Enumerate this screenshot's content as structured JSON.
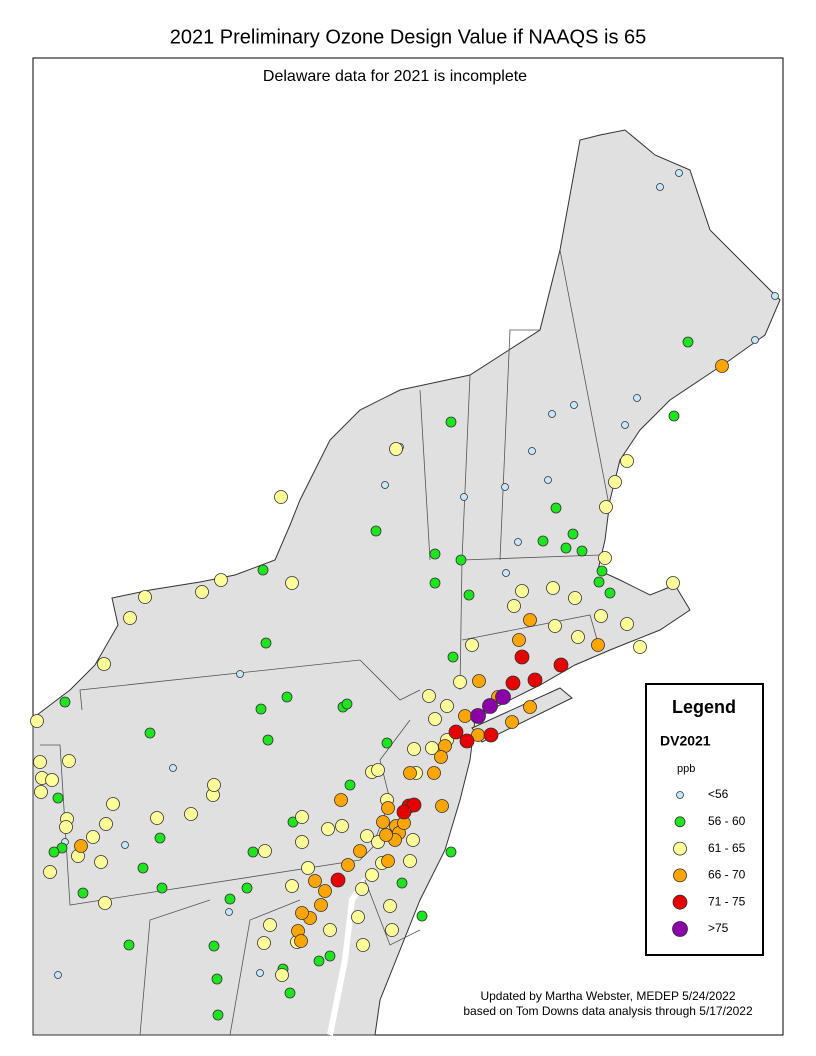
{
  "title": "2021 Preliminary Ozone Design Value if NAAQS is 65",
  "subtitle": "Delaware data for 2021 is incomplete",
  "legend": {
    "title": "Legend",
    "field": "DV2021",
    "units": "ppb",
    "items": [
      {
        "label": "<56",
        "color": "#c4e8ff"
      },
      {
        "label": "56 - 60",
        "color": "#1ee61e"
      },
      {
        "label": "61 - 65",
        "color": "#ffff99"
      },
      {
        "label": "66 - 70",
        "color": "#ffa500"
      },
      {
        "label": "71 - 75",
        "color": "#e60000"
      },
      {
        "label": ">75",
        "color": "#8c00a8"
      }
    ]
  },
  "credits": [
    "Updated by Martha Webster, MEDEP 5/24/2022",
    "based on Tom Downs data analysis through 5/17/2022"
  ]
}
